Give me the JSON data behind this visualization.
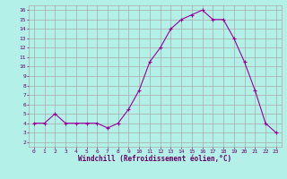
{
  "x": [
    0,
    1,
    2,
    3,
    4,
    5,
    6,
    7,
    8,
    9,
    10,
    11,
    12,
    13,
    14,
    15,
    16,
    17,
    18,
    19,
    20,
    21,
    22,
    23
  ],
  "y": [
    4,
    4,
    5,
    4,
    4,
    4,
    4,
    3.5,
    4,
    5.5,
    7.5,
    10.5,
    12,
    14,
    15,
    15.5,
    16,
    15,
    15,
    13,
    10.5,
    7.5,
    4,
    3
  ],
  "line_color": "#990099",
  "marker": "+",
  "bg_color": "#b2f0e8",
  "grid_color": "#aaaaaa",
  "grid_color_minor": "#cccccc",
  "xlabel": "Windchill (Refroidissement éolien,°C)",
  "xlabel_color": "#660066",
  "tick_color": "#660066",
  "ylim": [
    1.5,
    16.5
  ],
  "xlim": [
    -0.5,
    23.5
  ],
  "yticks": [
    2,
    3,
    4,
    5,
    6,
    7,
    8,
    9,
    10,
    11,
    12,
    13,
    14,
    15,
    16
  ],
  "xticks": [
    0,
    1,
    2,
    3,
    4,
    5,
    6,
    7,
    8,
    9,
    10,
    11,
    12,
    13,
    14,
    15,
    16,
    17,
    18,
    19,
    20,
    21,
    22,
    23
  ]
}
